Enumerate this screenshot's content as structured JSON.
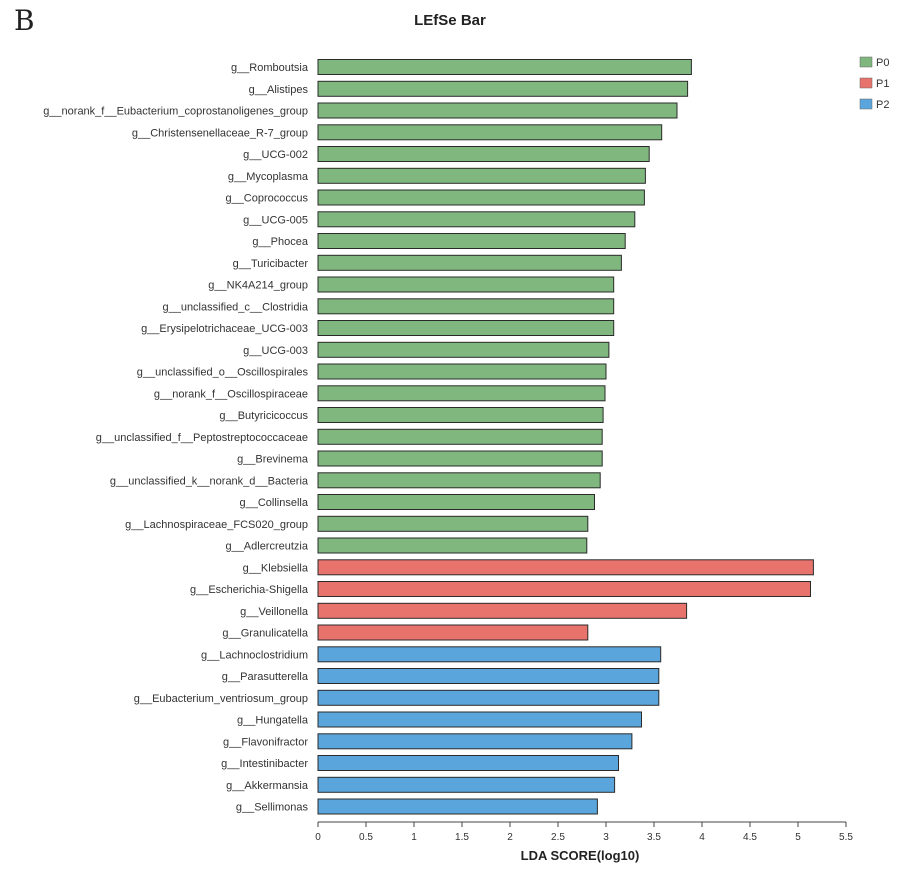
{
  "panel_letter": "B",
  "chart_data": {
    "type": "bar",
    "orientation": "horizontal",
    "title": "LEfSe Bar",
    "xlabel": "LDA SCORE(log10)",
    "ylabel": "",
    "xlim": [
      0,
      5.5
    ],
    "x_ticks": [
      "0",
      "0.5",
      "1",
      "1.5",
      "2",
      "2.5",
      "3",
      "3.5",
      "4",
      "4.5",
      "5",
      "5.5"
    ],
    "grid": false,
    "legend_position": "top-right",
    "groups": [
      {
        "name": "P0",
        "color": "#7fb77e"
      },
      {
        "name": "P1",
        "color": "#e8726c"
      },
      {
        "name": "P2",
        "color": "#5aa5dc"
      }
    ],
    "bars": [
      {
        "label": "g__Romboutsia",
        "value": 3.89,
        "group": "P0"
      },
      {
        "label": "g__Alistipes",
        "value": 3.85,
        "group": "P0"
      },
      {
        "label": "g__norank_f__Eubacterium_coprostanoligenes_group",
        "value": 3.74,
        "group": "P0"
      },
      {
        "label": "g__Christensenellaceae_R-7_group",
        "value": 3.58,
        "group": "P0"
      },
      {
        "label": "g__UCG-002",
        "value": 3.45,
        "group": "P0"
      },
      {
        "label": "g__Mycoplasma",
        "value": 3.41,
        "group": "P0"
      },
      {
        "label": "g__Coprococcus",
        "value": 3.4,
        "group": "P0"
      },
      {
        "label": "g__UCG-005",
        "value": 3.3,
        "group": "P0"
      },
      {
        "label": "g__Phocea",
        "value": 3.2,
        "group": "P0"
      },
      {
        "label": "g__Turicibacter",
        "value": 3.16,
        "group": "P0"
      },
      {
        "label": "g__NK4A214_group",
        "value": 3.08,
        "group": "P0"
      },
      {
        "label": "g__unclassified_c__Clostridia",
        "value": 3.08,
        "group": "P0"
      },
      {
        "label": "g__Erysipelotrichaceae_UCG-003",
        "value": 3.08,
        "group": "P0"
      },
      {
        "label": "g__UCG-003",
        "value": 3.03,
        "group": "P0"
      },
      {
        "label": "g__unclassified_o__Oscillospirales",
        "value": 3.0,
        "group": "P0"
      },
      {
        "label": "g__norank_f__Oscillospiraceae",
        "value": 2.99,
        "group": "P0"
      },
      {
        "label": "g__Butyricicoccus",
        "value": 2.97,
        "group": "P0"
      },
      {
        "label": "g__unclassified_f__Peptostreptococcaceae",
        "value": 2.96,
        "group": "P0"
      },
      {
        "label": "g__Brevinema",
        "value": 2.96,
        "group": "P0"
      },
      {
        "label": "g__unclassified_k__norank_d__Bacteria",
        "value": 2.94,
        "group": "P0"
      },
      {
        "label": "g__Collinsella",
        "value": 2.88,
        "group": "P0"
      },
      {
        "label": "g__Lachnospiraceae_FCS020_group",
        "value": 2.81,
        "group": "P0"
      },
      {
        "label": "g__Adlercreutzia",
        "value": 2.8,
        "group": "P0"
      },
      {
        "label": "g__Klebsiella",
        "value": 5.16,
        "group": "P1"
      },
      {
        "label": "g__Escherichia-Shigella",
        "value": 5.13,
        "group": "P1"
      },
      {
        "label": "g__Veillonella",
        "value": 3.84,
        "group": "P1"
      },
      {
        "label": "g__Granulicatella",
        "value": 2.81,
        "group": "P1"
      },
      {
        "label": "g__Lachnoclostridium",
        "value": 3.57,
        "group": "P2"
      },
      {
        "label": "g__Parasutterella",
        "value": 3.55,
        "group": "P2"
      },
      {
        "label": "g__Eubacterium_ventriosum_group",
        "value": 3.55,
        "group": "P2"
      },
      {
        "label": "g__Hungatella",
        "value": 3.37,
        "group": "P2"
      },
      {
        "label": "g__Flavonifractor",
        "value": 3.27,
        "group": "P2"
      },
      {
        "label": "g__Intestinibacter",
        "value": 3.13,
        "group": "P2"
      },
      {
        "label": "g__Akkermansia",
        "value": 3.09,
        "group": "P2"
      },
      {
        "label": "g__Sellimonas",
        "value": 2.91,
        "group": "P2"
      }
    ]
  }
}
